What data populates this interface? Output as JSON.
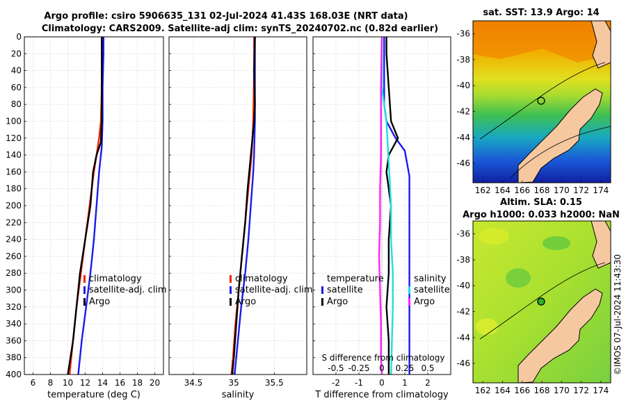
{
  "figure": {
    "title_line1": "Argo profile: csiro 5906635_131 02-Jul-2024 41.43S 168.03E (NRT data)",
    "title_line2": "Climatology: CARS2009. Satellite-adj clim: synTS_20240702.nc (0.82d earlier)",
    "credit": "©IMOS 07-Jul-2024 11:43:30"
  },
  "colors": {
    "climatology": "#ee2200",
    "satellite": "#1a1aee",
    "argo": "#000000",
    "temp_sat_diff": "#1a1aee",
    "sal_diff": "#ff22ff",
    "sal_sat_diff": "#22dddd",
    "land": "#f5c8a0"
  },
  "chart_data": [
    {
      "type": "line",
      "name": "temperature-profile",
      "xlabel": "temperature (deg C)",
      "ylabel": "",
      "xlim": [
        5,
        21
      ],
      "ylim": [
        400,
        0
      ],
      "xticks": [
        6,
        8,
        10,
        12,
        14,
        16,
        18,
        20
      ],
      "yticks": [
        0,
        20,
        40,
        60,
        80,
        100,
        120,
        140,
        160,
        180,
        200,
        220,
        240,
        260,
        280,
        300,
        320,
        340,
        360,
        380,
        400
      ],
      "grid": true,
      "legend": [
        "climatology",
        "satellite-adj. clim",
        "Argo"
      ],
      "series": [
        {
          "name": "climatology",
          "color": "climatology",
          "depth": [
            0,
            20,
            60,
            100,
            120,
            140,
            160,
            200,
            240,
            280,
            320,
            360,
            400
          ],
          "values": [
            14.0,
            14.0,
            13.9,
            13.8,
            13.6,
            13.3,
            13.0,
            12.5,
            12.0,
            11.5,
            11.0,
            10.6,
            10.2
          ]
        },
        {
          "name": "satellite-adj. clim",
          "color": "satellite",
          "depth": [
            0,
            20,
            60,
            100,
            130,
            160,
            200,
            240,
            280,
            320,
            360,
            400
          ],
          "values": [
            14.1,
            14.1,
            14.0,
            14.0,
            13.9,
            13.6,
            13.3,
            13.0,
            12.6,
            12.1,
            11.6,
            11.2
          ]
        },
        {
          "name": "Argo",
          "color": "argo",
          "depth": [
            0,
            20,
            60,
            100,
            125,
            140,
            160,
            200,
            240,
            280,
            320,
            360,
            400
          ],
          "values": [
            13.9,
            13.9,
            13.9,
            13.9,
            13.8,
            13.3,
            12.9,
            12.6,
            12.0,
            11.4,
            11.0,
            10.6,
            10.0
          ]
        }
      ]
    },
    {
      "type": "line",
      "name": "salinity-profile",
      "xlabel": "salinity",
      "ylabel": "",
      "xlim": [
        34.2,
        35.9
      ],
      "ylim": [
        400,
        0
      ],
      "xticks": [
        34.5,
        35,
        35.5
      ],
      "yticks": [
        0,
        20,
        40,
        60,
        80,
        100,
        120,
        140,
        160,
        180,
        200,
        220,
        240,
        260,
        280,
        300,
        320,
        340,
        360,
        380,
        400
      ],
      "grid": true,
      "legend": [
        "climatology",
        "satellite-adj. clim",
        "Argo"
      ],
      "series": [
        {
          "name": "climatology",
          "color": "climatology",
          "depth": [
            0,
            40,
            100,
            140,
            180,
            220,
            260,
            300,
            340,
            380,
            400
          ],
          "values": [
            35.25,
            35.25,
            35.24,
            35.22,
            35.18,
            35.14,
            35.1,
            35.06,
            35.02,
            34.99,
            34.97
          ]
        },
        {
          "name": "satellite-adj. clim",
          "color": "satellite",
          "depth": [
            0,
            40,
            100,
            140,
            160,
            200,
            240,
            280,
            320,
            360,
            400
          ],
          "values": [
            35.26,
            35.26,
            35.26,
            35.25,
            35.24,
            35.21,
            35.18,
            35.14,
            35.09,
            35.05,
            35.01
          ]
        },
        {
          "name": "Argo",
          "color": "argo",
          "depth": [
            0,
            40,
            80,
            100,
            130,
            150,
            180,
            220,
            260,
            300,
            340,
            380,
            400
          ],
          "values": [
            35.26,
            35.25,
            35.26,
            35.25,
            35.22,
            35.2,
            35.17,
            35.14,
            35.1,
            35.06,
            35.03,
            35.0,
            34.98
          ]
        }
      ]
    },
    {
      "type": "line",
      "name": "difference-profile",
      "xlabel": "T difference from climatology",
      "top_axis_label": "S difference from climatology",
      "xlim": [
        -3,
        3
      ],
      "ylim": [
        400,
        0
      ],
      "xticks": [
        -2,
        -1,
        0,
        1,
        2
      ],
      "top_ticks": [
        "-0.5",
        "-0.25",
        "0",
        "0.25",
        "0.5"
      ],
      "top_tick_values": [
        -0.5,
        -0.25,
        0,
        0.25,
        0.5
      ],
      "yticks": [
        0,
        20,
        40,
        60,
        80,
        100,
        120,
        140,
        160,
        180,
        200,
        220,
        240,
        260,
        280,
        300,
        320,
        340,
        360,
        380,
        400
      ],
      "grid": true,
      "legend_temperature": {
        "title": "temperature",
        "items": [
          "satellite",
          "Argo"
        ]
      },
      "legend_salinity": {
        "title": "salinity",
        "items": [
          "satellite",
          "Argo"
        ]
      },
      "series": [
        {
          "name": "temperature satellite",
          "color": "temp_sat_diff",
          "depth": [
            0,
            40,
            80,
            100,
            120,
            135,
            150,
            165,
            200,
            300,
            400
          ],
          "values": [
            0.1,
            0.1,
            0.1,
            0.2,
            0.6,
            1.0,
            1.1,
            1.2,
            1.2,
            1.2,
            1.2
          ]
        },
        {
          "name": "temperature Argo",
          "color": "argo",
          "depth": [
            0,
            20,
            60,
            100,
            120,
            140,
            160,
            180,
            200,
            240,
            280,
            320,
            360,
            400
          ],
          "values": [
            0.2,
            0.2,
            0.3,
            0.4,
            0.7,
            0.3,
            0.2,
            0.3,
            0.4,
            0.3,
            0.3,
            0.2,
            0.3,
            0.3
          ]
        },
        {
          "name": "salinity satellite",
          "color": "sal_sat_diff",
          "depth": [
            0,
            60,
            100,
            160,
            200,
            240,
            280,
            320,
            360,
            400
          ],
          "values": [
            0.0,
            0.0,
            0.05,
            0.08,
            0.1,
            0.1,
            0.12,
            0.12,
            0.11,
            0.1
          ]
        },
        {
          "name": "salinity Argo",
          "color": "sal_diff",
          "depth": [
            0,
            60,
            100,
            140,
            180,
            220,
            260,
            300,
            340,
            380,
            400
          ],
          "values": [
            0.0,
            -0.01,
            -0.01,
            -0.01,
            -0.02,
            -0.02,
            -0.03,
            -0.02,
            -0.01,
            -0.01,
            0.0
          ]
        }
      ]
    },
    {
      "type": "heatmap",
      "name": "sst-map",
      "title": "sat. SST: 13.9 Argo: 14",
      "xticks": [
        162,
        164,
        166,
        168,
        170,
        172,
        174
      ],
      "yticks": [
        -36,
        -38,
        -40,
        -42,
        -44,
        -46
      ],
      "xlim": [
        161,
        175
      ],
      "ylim": [
        -47.5,
        -35
      ],
      "argo_position": {
        "lon": 168.03,
        "lat": -41.43
      }
    },
    {
      "type": "heatmap",
      "name": "sla-map",
      "title_line1": "Altim. SLA: 0.15",
      "title_line2": "Argo h1000: 0.033 h2000: NaN",
      "xticks": [
        162,
        164,
        166,
        168,
        170,
        172,
        174
      ],
      "yticks": [
        -36,
        -38,
        -40,
        -42,
        -44,
        -46
      ],
      "xlim": [
        161,
        175
      ],
      "ylim": [
        -47.5,
        -35
      ],
      "argo_position": {
        "lon": 168.03,
        "lat": -41.43
      }
    }
  ]
}
